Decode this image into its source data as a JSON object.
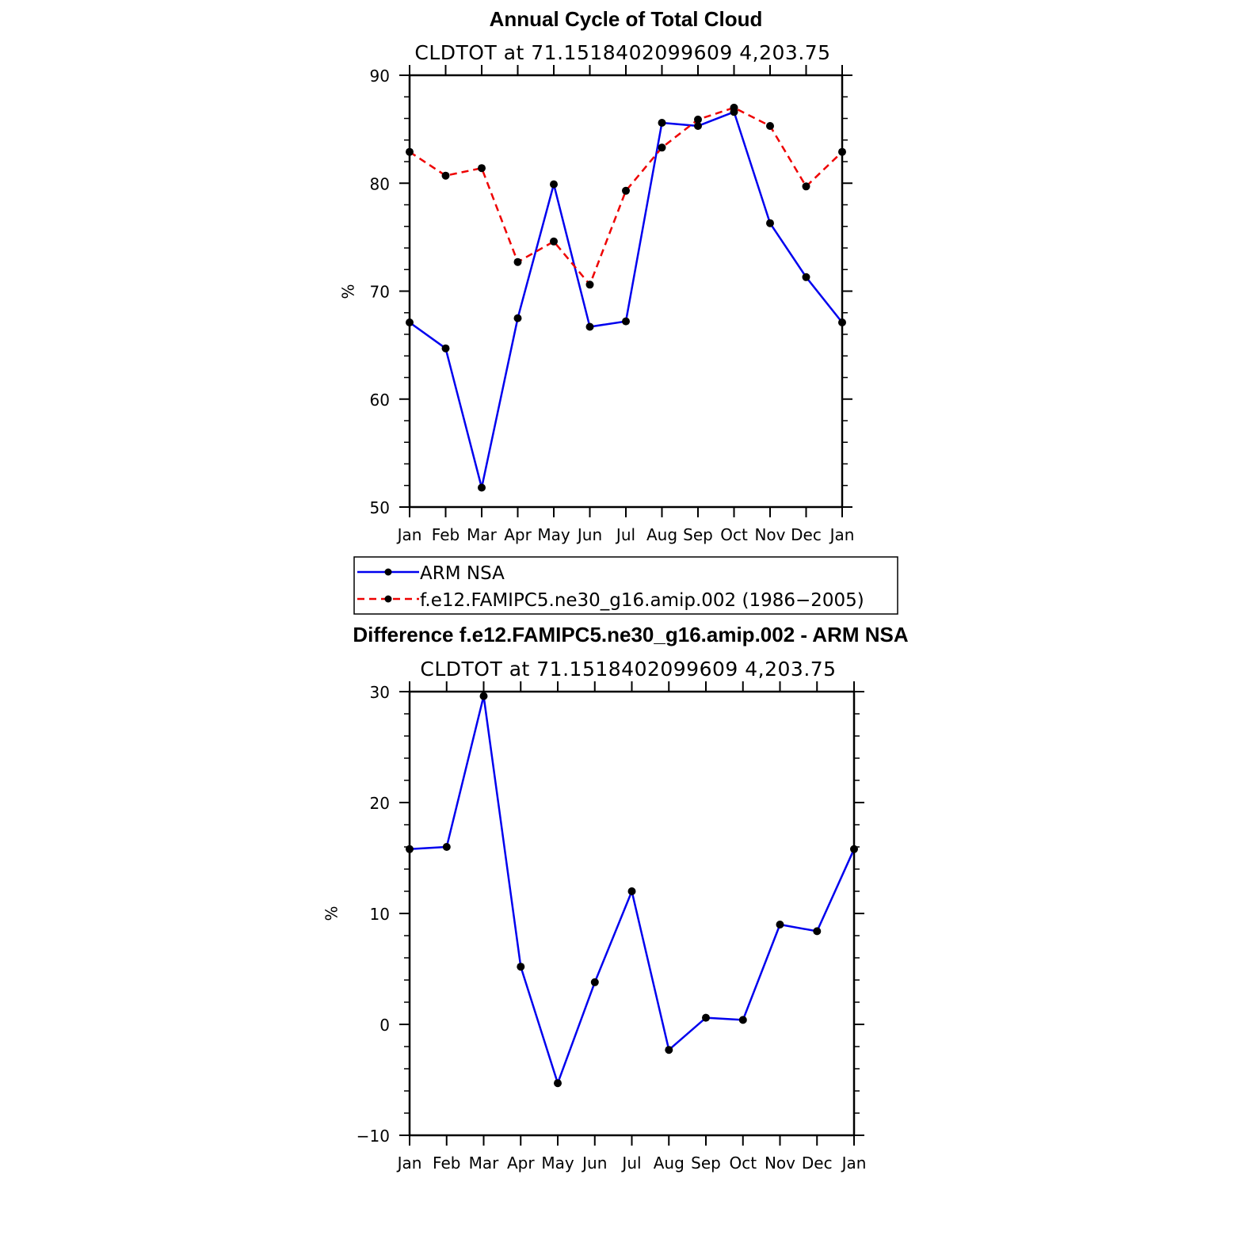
{
  "colors": {
    "arm": "#0000ee",
    "model": "#ee0000",
    "marker": "#000000",
    "axis": "#000000"
  },
  "chart_data": [
    {
      "type": "line",
      "title": "Annual Cycle of Total Cloud",
      "subtitle": "CLDTOT at 71.1518402099609 4,203.75",
      "ylabel": "%",
      "ylim": [
        50,
        90
      ],
      "yticks": [
        50,
        60,
        70,
        80,
        90
      ],
      "categories": [
        "Jan",
        "Feb",
        "Mar",
        "Apr",
        "May",
        "Jun",
        "Jul",
        "Aug",
        "Sep",
        "Oct",
        "Nov",
        "Dec",
        "Jan"
      ],
      "series": [
        {
          "name": "ARM NSA",
          "style": "solid",
          "values": [
            67.1,
            64.7,
            51.8,
            67.5,
            79.9,
            66.7,
            67.2,
            85.6,
            85.3,
            86.6,
            76.3,
            71.3,
            67.1
          ]
        },
        {
          "name": "f.e12.FAMIPC5.ne30_g16.amip.002 (1986−2005)",
          "style": "dashed",
          "values": [
            82.9,
            80.7,
            81.4,
            72.7,
            74.6,
            70.6,
            79.3,
            83.3,
            85.9,
            87.0,
            85.3,
            79.7,
            82.9
          ]
        }
      ],
      "legend": [
        "ARM NSA",
        "f.e12.FAMIPC5.ne30_g16.amip.002 (1986−2005)"
      ]
    },
    {
      "type": "line",
      "title": "Difference f.e12.FAMIPC5.ne30_g16.amip.002 - ARM NSA",
      "subtitle": "CLDTOT at 71.1518402099609 4,203.75",
      "ylabel": "%",
      "ylim": [
        -10,
        30
      ],
      "yticks": [
        -10,
        0,
        10,
        20,
        30
      ],
      "categories": [
        "Jan",
        "Feb",
        "Mar",
        "Apr",
        "May",
        "Jun",
        "Jul",
        "Aug",
        "Sep",
        "Oct",
        "Nov",
        "Dec",
        "Jan"
      ],
      "series": [
        {
          "name": "Difference",
          "style": "solid",
          "values": [
            15.8,
            16.0,
            29.6,
            5.2,
            -5.3,
            3.8,
            12.0,
            -2.3,
            0.6,
            0.4,
            9.0,
            8.4,
            15.8
          ]
        }
      ]
    }
  ]
}
